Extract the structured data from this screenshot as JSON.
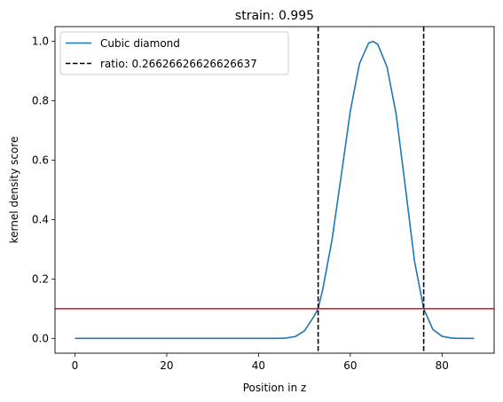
{
  "chart_data": {
    "type": "line",
    "title": "strain: 0.995",
    "xlabel": "Position in z",
    "ylabel": "kernel density score",
    "xlim": [
      -4.35,
      91.35
    ],
    "ylim": [
      -0.05,
      1.05
    ],
    "xticks": [
      0,
      20,
      40,
      60,
      80
    ],
    "yticks": [
      0.0,
      0.2,
      0.4,
      0.6,
      0.8,
      1.0
    ],
    "grid": false,
    "legend_position": "top-left",
    "series": [
      {
        "name": "Cubic diamond",
        "color": "#1f77b4",
        "x": [
          0,
          5,
          10,
          15,
          20,
          25,
          30,
          35,
          40,
          44,
          46,
          48,
          50,
          52,
          53,
          54,
          56,
          58,
          60,
          62,
          64,
          65,
          66,
          68,
          70,
          72,
          74,
          76,
          78,
          80,
          82,
          84,
          87
        ],
        "y": [
          0,
          0,
          0,
          0,
          0,
          0,
          0,
          0,
          0,
          0,
          0.001,
          0.006,
          0.025,
          0.072,
          0.1,
          0.165,
          0.33,
          0.545,
          0.765,
          0.925,
          0.995,
          1.0,
          0.99,
          0.915,
          0.755,
          0.51,
          0.26,
          0.1,
          0.03,
          0.007,
          0.001,
          0,
          0
        ]
      }
    ],
    "vlines": {
      "label": "ratio: 0.26626626626626637",
      "color": "#000000",
      "style": "dashed",
      "x": [
        53,
        76
      ]
    },
    "hline": {
      "y": 0.1,
      "color": "#d62728"
    }
  }
}
